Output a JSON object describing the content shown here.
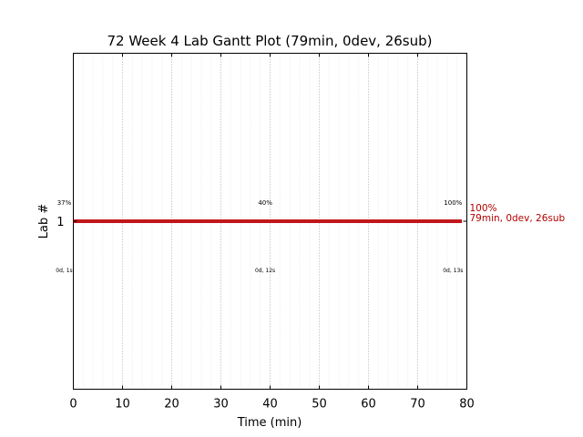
{
  "chart_data": {
    "type": "gantt",
    "title": "72 Week 4 Lab Gantt Plot (79min, 0dev, 26sub)",
    "xlabel": "Time (min)",
    "ylabel": "Lab #",
    "xlim": [
      0,
      80
    ],
    "xticks": [
      0,
      10,
      20,
      30,
      40,
      50,
      60,
      70,
      80
    ],
    "ylim": [
      0,
      2
    ],
    "yticks": [
      1
    ],
    "grid": "vertical dotted",
    "bar_color": "#c0171c",
    "bars": [
      {
        "lab": 1,
        "start": 0,
        "end": 79,
        "end_label_pct": "100%",
        "end_label_stats": "79min, 0dev, 26sub"
      }
    ],
    "annotations": [
      {
        "x": 0,
        "top": "37%",
        "bottom": "0d, 1s"
      },
      {
        "x": 39,
        "top": "40%",
        "bottom": "0d, 12s"
      },
      {
        "x": 77,
        "top": "100%",
        "bottom": "0d, 13s"
      }
    ]
  }
}
